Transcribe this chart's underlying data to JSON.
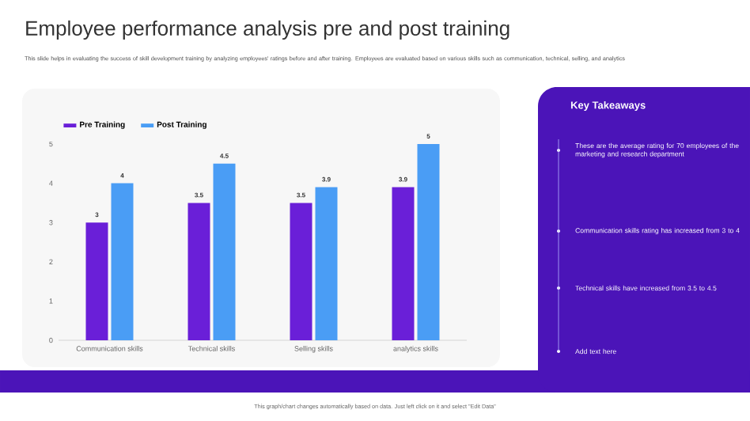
{
  "chart_data": {
    "type": "bar",
    "title": "Employee performance analysis pre and post training",
    "subtitle": "This slide helps in evaluating the success of skill development training by analyzing employees' ratings before and after training. Employees are evaluated based on various skills such as communication, technical, selling, and analytics",
    "categories": [
      "Communication skills",
      "Technical skills",
      "Selling skills",
      "analytics skills"
    ],
    "series": [
      {
        "name": "Pre Training",
        "color": "#6a1fd8",
        "values": [
          3,
          3.5,
          3.5,
          3.9
        ]
      },
      {
        "name": "Post Training",
        "color": "#4a9df5",
        "values": [
          4,
          4.5,
          3.9,
          5
        ]
      }
    ],
    "ylim": [
      0,
      5
    ],
    "yticks": [
      0,
      1,
      2,
      3,
      4,
      5
    ],
    "data_labels": true,
    "grid": false,
    "legend": "top left",
    "annotations": [
      "Key Takeaways",
      "These are the average rating for 70 employees of the marketing and research department",
      "Communication skills rating has increased from 3 to 4",
      "Technical skills have increased from 3.5 to 4.5",
      "Add text here",
      "This graph/chart changes automatically based on data. Just left click on it and select \"Edit Data\""
    ]
  }
}
